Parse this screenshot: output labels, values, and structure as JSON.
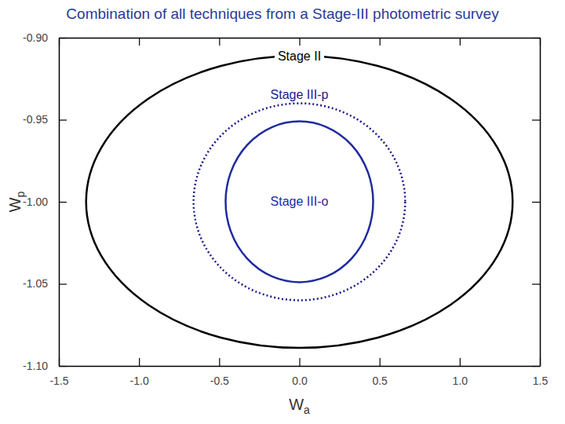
{
  "chart_data": {
    "type": "ellipse",
    "title": "Combination of all techniques from a Stage-III photometric survey",
    "xlabel": {
      "base": "W",
      "subscript": "a"
    },
    "ylabel": {
      "base": "W",
      "subscript": "p"
    },
    "xlim": [
      -1.5,
      1.5
    ],
    "ylim": [
      -1.1,
      -0.9
    ],
    "xticks": [
      {
        "value": -1.5,
        "label": "-1.5"
      },
      {
        "value": -1.0,
        "label": "-1.0"
      },
      {
        "value": -0.5,
        "label": "-0.5"
      },
      {
        "value": 0.0,
        "label": "0.0"
      },
      {
        "value": 0.5,
        "label": "0.5"
      },
      {
        "value": 1.0,
        "label": "1.0"
      },
      {
        "value": 1.5,
        "label": "1.5"
      }
    ],
    "yticks": [
      {
        "value": -1.1,
        "label": "-1.10"
      },
      {
        "value": -1.05,
        "label": "-1.05"
      },
      {
        "value": -1.0,
        "label": "-1.00"
      },
      {
        "value": -0.95,
        "label": "-0.95"
      },
      {
        "value": -0.9,
        "label": "-0.90"
      }
    ],
    "series": [
      {
        "name": "Stage II",
        "color": "#000000",
        "line_style": "solid",
        "center_x": 0.0,
        "center_y": -1.0,
        "half_width": 1.33,
        "half_height": 0.089
      },
      {
        "name": "Stage III-p",
        "color": "#1a1a8c",
        "line_style": "dotted",
        "center_x": 0.0,
        "center_y": -1.0,
        "half_width": 0.66,
        "half_height": 0.06
      },
      {
        "name": "Stage III-o",
        "color": "#1f2a9e",
        "line_style": "solid",
        "center_x": 0.0,
        "center_y": -1.0,
        "half_width": 0.46,
        "half_height": 0.049
      }
    ]
  }
}
